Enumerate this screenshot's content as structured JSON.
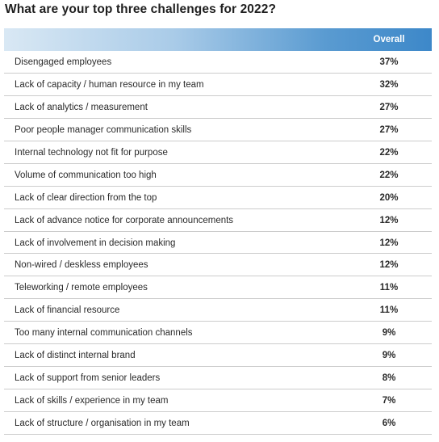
{
  "title": "What are your top three challenges for 2022?",
  "table": {
    "column_header": "Overall",
    "rows": [
      {
        "label": "Disengaged employees",
        "value": "37%"
      },
      {
        "label": "Lack of capacity / human resource in my team",
        "value": "32%"
      },
      {
        "label": "Lack of analytics / measurement",
        "value": "27%"
      },
      {
        "label": "Poor people manager communication skills",
        "value": "27%"
      },
      {
        "label": "Internal technology not fit for purpose",
        "value": "22%"
      },
      {
        "label": "Volume of communication too high",
        "value": "22%"
      },
      {
        "label": "Lack of clear direction from the top",
        "value": "20%"
      },
      {
        "label": "Lack of advance notice for corporate announcements",
        "value": "12%"
      },
      {
        "label": "Lack of involvement in decision making",
        "value": "12%"
      },
      {
        "label": "Non-wired / deskless employees",
        "value": "12%"
      },
      {
        "label": "Teleworking / remote employees",
        "value": "11%"
      },
      {
        "label": "Lack of financial resource",
        "value": "11%"
      },
      {
        "label": "Too many internal communication channels",
        "value": "9%"
      },
      {
        "label": "Lack of distinct internal brand",
        "value": "9%"
      },
      {
        "label": "Lack of support from senior leaders",
        "value": "8%"
      },
      {
        "label": "Lack of skills / experience in my team",
        "value": "7%"
      },
      {
        "label": "Lack of structure / organisation in my team",
        "value": "6%"
      }
    ]
  }
}
